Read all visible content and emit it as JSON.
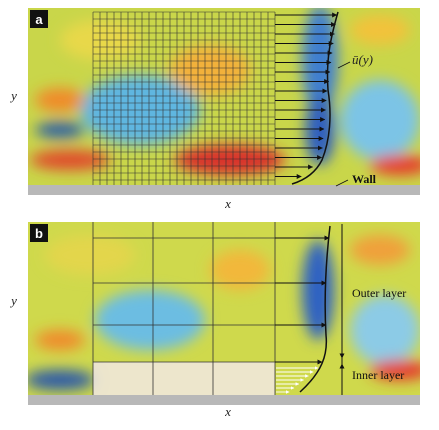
{
  "panels": [
    {
      "label": "a",
      "ylabel": "y",
      "xlabel": "x",
      "profile_label": "ū(y)",
      "wall_label": "Wall"
    },
    {
      "label": "b",
      "ylabel": "y",
      "xlabel": "x",
      "outer_label": "Outer layer",
      "inner_label": "Inner layer"
    }
  ]
}
